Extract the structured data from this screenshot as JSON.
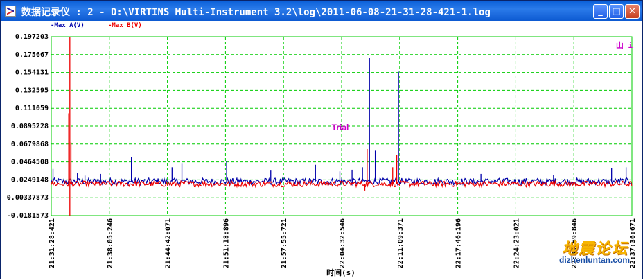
{
  "window": {
    "title": "数据记录仪 : 2 - D:\\VIRTINS Multi-Instrument 3.2\\log\\2011-06-08-21-31-28-421-1.log",
    "minimize_label": "_",
    "maximize_label": "□",
    "close_label": "✕"
  },
  "legend": {
    "series_a": "-Max_A(V)",
    "series_b": "-Max_B(V)"
  },
  "corner_label": "山 i",
  "trial_label": "Trial",
  "watermark": {
    "chinese": "地震论坛",
    "english": "dizhenluntan.com"
  },
  "colors": {
    "series_a": "#0000aa",
    "series_b": "#ee0000",
    "grid": "#00cc00",
    "trial": "#cc00cc"
  },
  "chart_data": {
    "type": "line",
    "xlabel": "时间(s)",
    "ylabel": "",
    "title": "",
    "ylim": [
      -0.0181573,
      0.197203
    ],
    "y_ticks": [
      "0.197203",
      "0.175667",
      "0.154131",
      "0.132595",
      "0.111059",
      "0.0895228",
      "0.0679868",
      "0.0464508",
      "0.0249148",
      "0.00337873",
      "-0.0181573"
    ],
    "x_ticks": [
      "21:31:28:421",
      "21:38:05:246",
      "21:44:42:071",
      "21:51:18:896",
      "21:57:55:721",
      "22:04:32:546",
      "22:11:09:371",
      "22:17:46:196",
      "22:24:23:021",
      "22:30:59:846",
      "22:37:36:671"
    ],
    "grid": true,
    "legend_position": "top-left",
    "series": [
      {
        "name": "Max_A(V)",
        "baseline": 0.023,
        "spikes": [
          {
            "x": 0.003,
            "y": 0.038
          },
          {
            "x": 0.045,
            "y": 0.033
          },
          {
            "x": 0.058,
            "y": 0.03
          },
          {
            "x": 0.085,
            "y": 0.032
          },
          {
            "x": 0.138,
            "y": 0.052
          },
          {
            "x": 0.208,
            "y": 0.04
          },
          {
            "x": 0.225,
            "y": 0.045
          },
          {
            "x": 0.302,
            "y": 0.047
          },
          {
            "x": 0.378,
            "y": 0.036
          },
          {
            "x": 0.455,
            "y": 0.043
          },
          {
            "x": 0.497,
            "y": 0.035
          },
          {
            "x": 0.518,
            "y": 0.037
          },
          {
            "x": 0.536,
            "y": 0.04
          },
          {
            "x": 0.548,
            "y": 0.172
          },
          {
            "x": 0.558,
            "y": 0.06
          },
          {
            "x": 0.598,
            "y": 0.155
          },
          {
            "x": 0.74,
            "y": 0.032
          },
          {
            "x": 0.865,
            "y": 0.031
          },
          {
            "x": 0.965,
            "y": 0.039
          },
          {
            "x": 0.99,
            "y": 0.04
          }
        ]
      },
      {
        "name": "Max_B(V)",
        "baseline": 0.02,
        "spikes": [
          {
            "x": 0.032,
            "y": 0.197
          },
          {
            "x": 0.03,
            "y": 0.105
          },
          {
            "x": 0.034,
            "y": 0.07
          },
          {
            "x": 0.544,
            "y": 0.062
          },
          {
            "x": 0.588,
            "y": 0.04
          },
          {
            "x": 0.595,
            "y": 0.055
          }
        ],
        "dips": [
          {
            "x": 0.032,
            "y": -0.0181
          },
          {
            "x": 0.54,
            "y": 0.012
          }
        ]
      }
    ]
  }
}
